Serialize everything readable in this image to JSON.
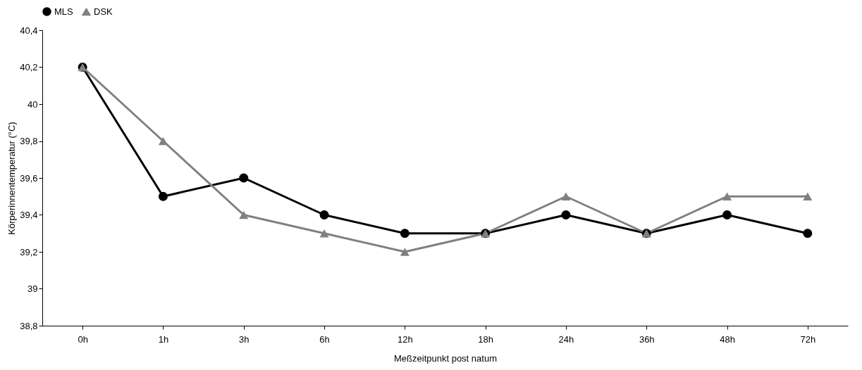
{
  "chart_data": {
    "type": "line",
    "xlabel": "Meßzeitpunkt post natum",
    "ylabel": "Körperinnentemperatur (°C)",
    "categories": [
      "0h",
      "1h",
      "3h",
      "6h",
      "12h",
      "18h",
      "24h",
      "36h",
      "48h",
      "72h"
    ],
    "series": [
      {
        "name": "MLS",
        "color": "#000000",
        "marker": "circle",
        "values": [
          40.2,
          39.5,
          39.6,
          39.4,
          39.3,
          39.3,
          39.4,
          39.3,
          39.4,
          39.3
        ]
      },
      {
        "name": "DSK",
        "color": "#808080",
        "marker": "triangle",
        "values": [
          40.2,
          39.8,
          39.4,
          39.3,
          39.2,
          39.3,
          39.5,
          39.3,
          39.5,
          39.5
        ]
      }
    ],
    "ylim": [
      38.8,
      40.4
    ],
    "yticks": [
      {
        "value": 38.8,
        "label": "38,8"
      },
      39,
      {
        "value": 39.2,
        "label": "39,2"
      },
      {
        "value": 39.4,
        "label": "39,4"
      },
      {
        "value": 39.6,
        "label": "39,6"
      },
      {
        "value": 39.8,
        "label": "39,8"
      },
      40,
      {
        "value": 40.2,
        "label": "40,2"
      },
      {
        "value": 40.4,
        "label": "40,4"
      }
    ],
    "grid": false,
    "legend": "top",
    "line_style": "solid"
  }
}
